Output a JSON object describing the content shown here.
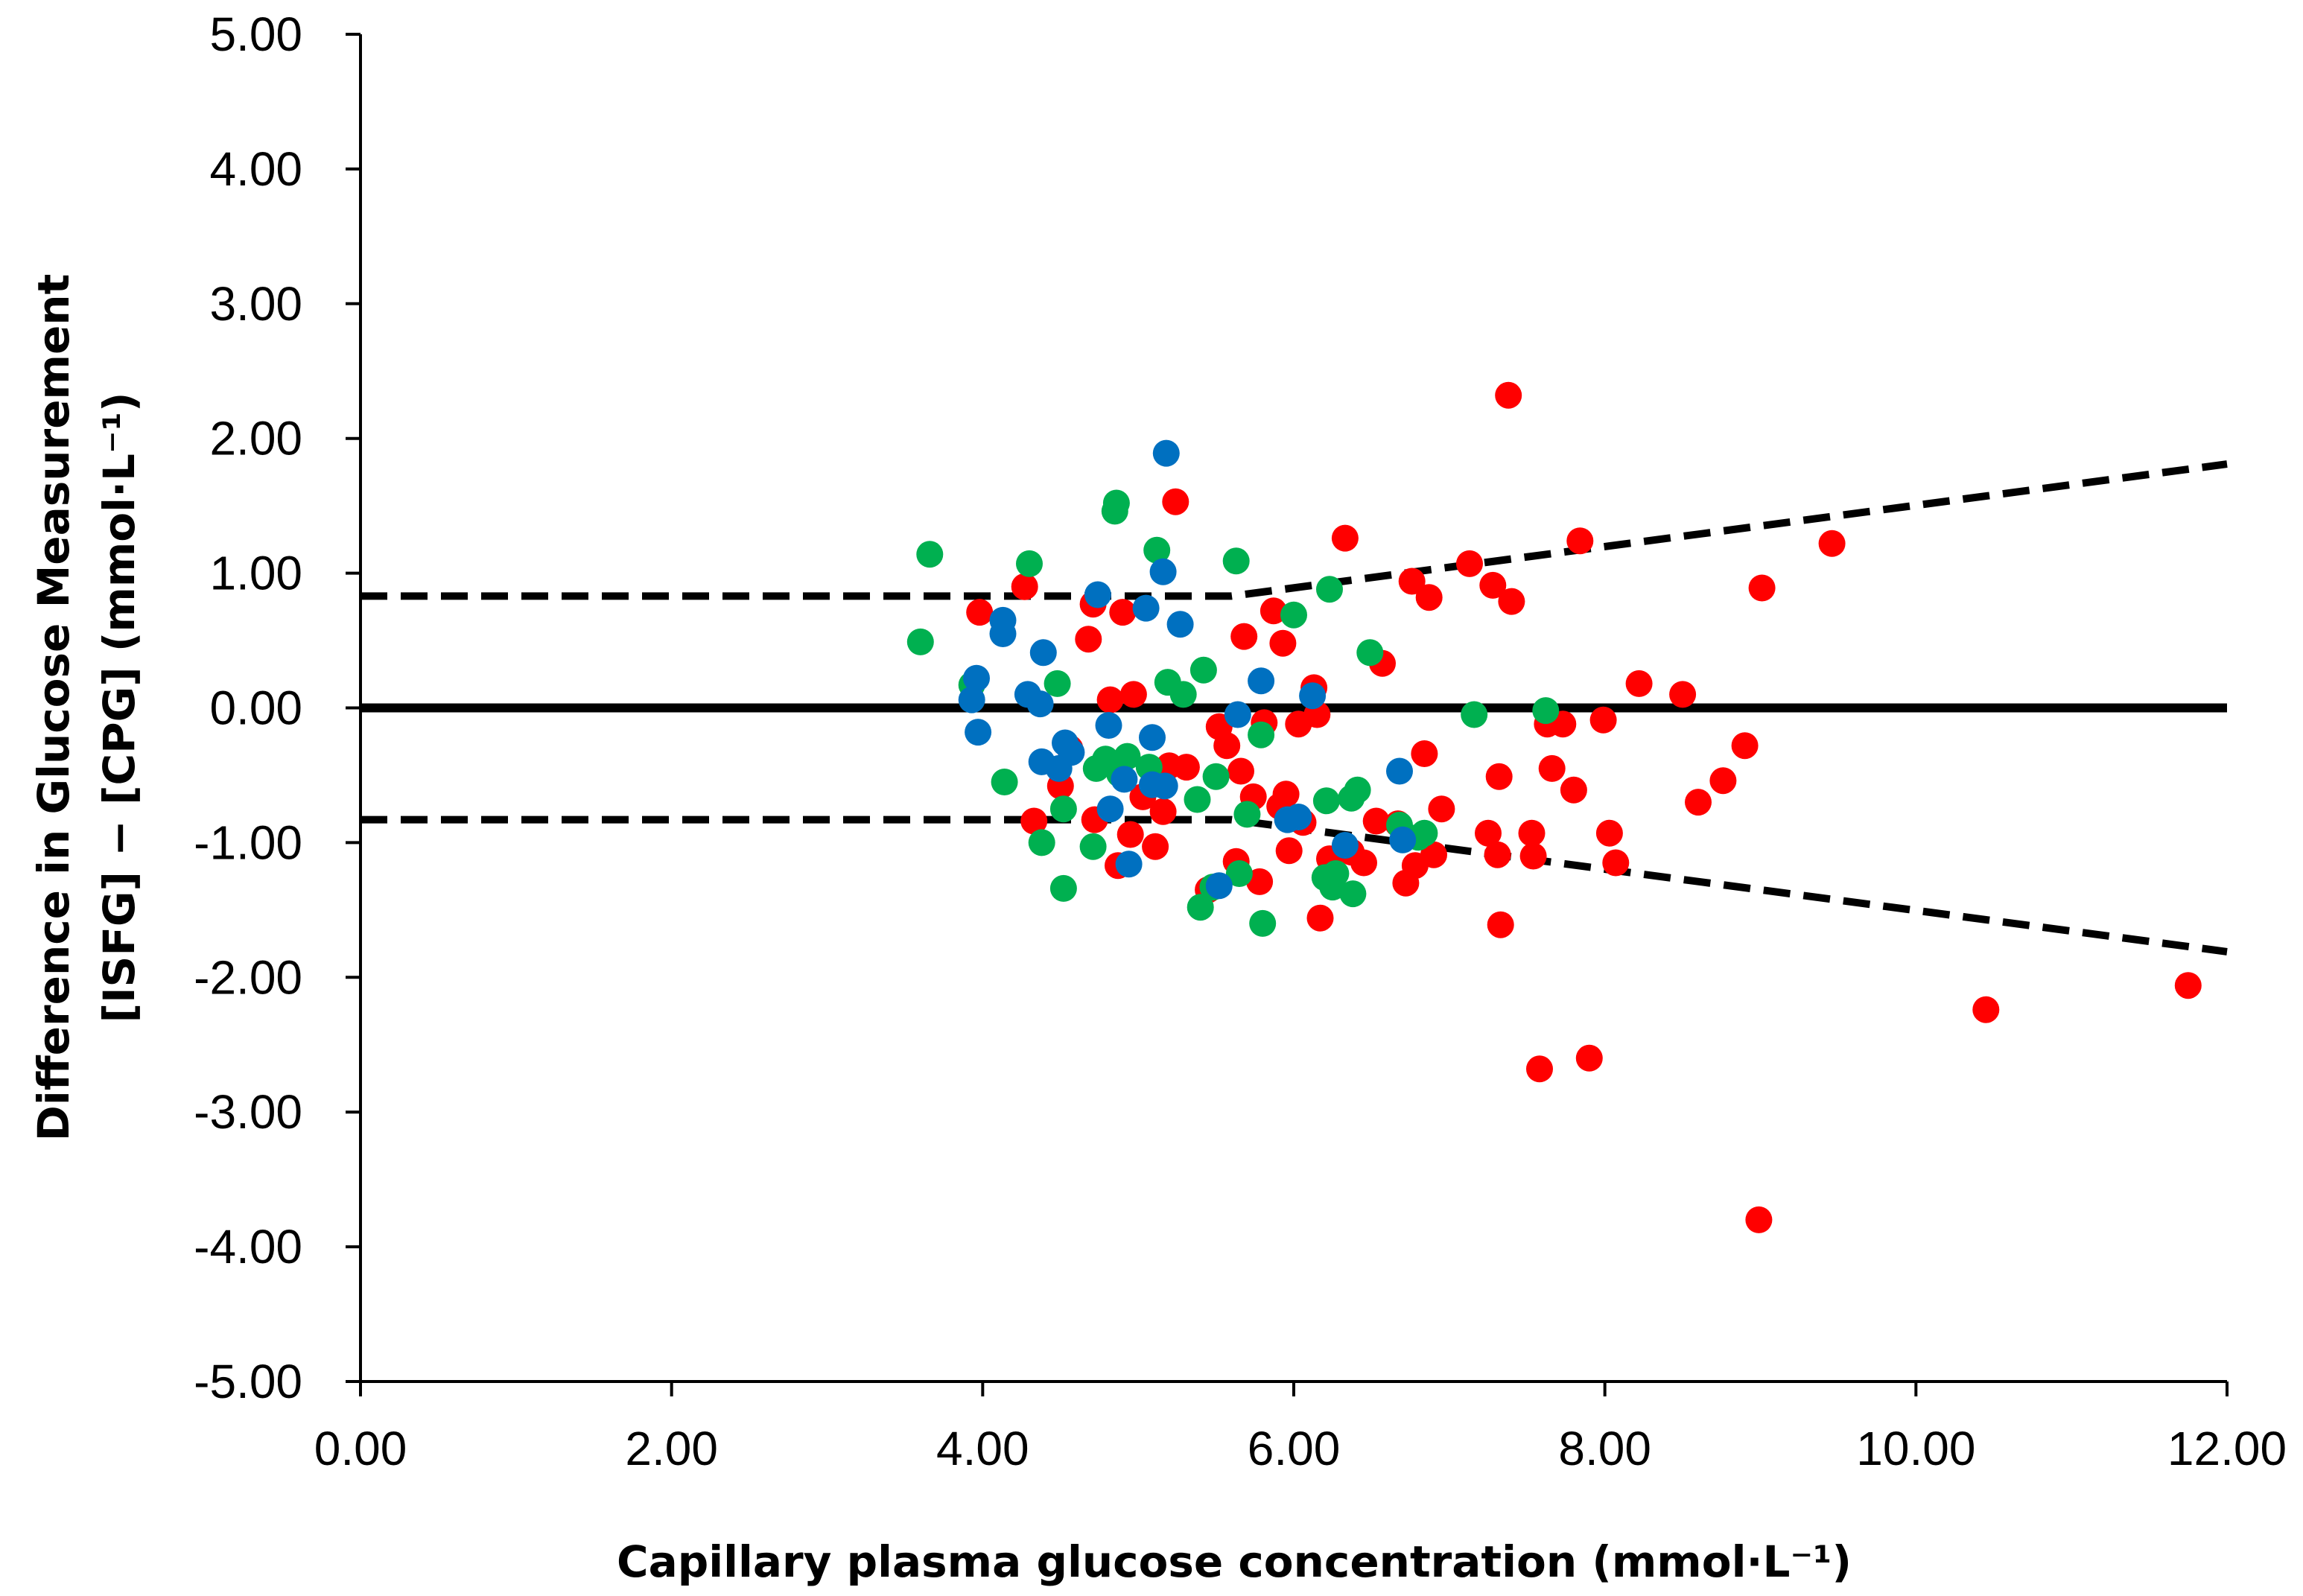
{
  "chart_data": {
    "type": "scatter",
    "title": "",
    "xlabel": "Capillary plasma glucose concentration (mmol·L⁻¹)",
    "ylabel_line1": "Difference in Glucose Measurement",
    "ylabel_line2": "[ISFG] − [CPG] (mmol·L⁻¹)",
    "xlim": [
      0,
      12
    ],
    "ylim": [
      -5,
      5
    ],
    "x_ticks": [
      0,
      2,
      4,
      6,
      8,
      10,
      12
    ],
    "y_ticks": [
      -5,
      -4,
      -3,
      -2,
      -1,
      0,
      1,
      2,
      3,
      4,
      5
    ],
    "x_tick_labels": [
      "0.00",
      "2.00",
      "4.00",
      "6.00",
      "8.00",
      "10.00",
      "12.00"
    ],
    "y_tick_labels": [
      "-5.00",
      "-4.00",
      "-3.00",
      "-2.00",
      "-1.00",
      "0.00",
      "1.00",
      "2.00",
      "3.00",
      "4.00",
      "5.00"
    ],
    "grid": false,
    "legend": "none",
    "colors": {
      "red": "#ff0000",
      "green": "#00b050",
      "blue": "#0070c0",
      "lines": "#000000"
    },
    "reference_lines": [
      {
        "name": "mean-difference",
        "style": "solid",
        "points": [
          [
            0,
            0.0
          ],
          [
            12,
            0.0
          ]
        ]
      },
      {
        "name": "upper-limit",
        "style": "dashed",
        "points": [
          [
            0,
            0.83
          ],
          [
            5.6,
            0.83
          ],
          [
            12,
            1.81
          ]
        ]
      },
      {
        "name": "lower-limit",
        "style": "dashed",
        "points": [
          [
            0,
            -0.83
          ],
          [
            5.6,
            -0.83
          ],
          [
            12,
            -1.81
          ]
        ]
      }
    ],
    "series": [
      {
        "name": "red",
        "color": "#ff0000",
        "points": [
          [
            3.98,
            0.71
          ],
          [
            4.27,
            0.9
          ],
          [
            4.33,
            -0.84
          ],
          [
            4.5,
            -0.58
          ],
          [
            4.56,
            -0.3
          ],
          [
            4.68,
            0.51
          ],
          [
            4.71,
            0.77
          ],
          [
            4.72,
            -0.83
          ],
          [
            4.82,
            0.06
          ],
          [
            4.87,
            -1.17
          ],
          [
            4.9,
            0.71
          ],
          [
            4.95,
            -0.94
          ],
          [
            4.97,
            0.1
          ],
          [
            5.03,
            -0.66
          ],
          [
            5.11,
            -1.03
          ],
          [
            5.16,
            -0.77
          ],
          [
            5.2,
            -0.43
          ],
          [
            5.24,
            1.53
          ],
          [
            5.31,
            -0.44
          ],
          [
            5.45,
            -1.35
          ],
          [
            5.52,
            -0.14
          ],
          [
            5.57,
            -0.28
          ],
          [
            5.63,
            -1.14
          ],
          [
            5.66,
            -0.47
          ],
          [
            5.68,
            0.53
          ],
          [
            5.74,
            -0.66
          ],
          [
            5.78,
            -1.29
          ],
          [
            5.81,
            -0.11
          ],
          [
            5.87,
            0.72
          ],
          [
            5.91,
            -0.73
          ],
          [
            5.93,
            0.48
          ],
          [
            5.95,
            -0.64
          ],
          [
            5.97,
            -1.06
          ],
          [
            6.03,
            -0.12
          ],
          [
            6.06,
            -0.85
          ],
          [
            6.13,
            0.15
          ],
          [
            6.15,
            -0.05
          ],
          [
            6.17,
            -1.56
          ],
          [
            6.23,
            -1.12
          ],
          [
            6.33,
            1.26
          ],
          [
            6.37,
            -1.07
          ],
          [
            6.45,
            -1.15
          ],
          [
            6.53,
            -0.84
          ],
          [
            6.57,
            0.33
          ],
          [
            6.67,
            -0.86
          ],
          [
            6.72,
            -1.3
          ],
          [
            6.76,
            0.94
          ],
          [
            6.78,
            -1.17
          ],
          [
            6.84,
            -0.34
          ],
          [
            6.87,
            0.82
          ],
          [
            6.9,
            -1.09
          ],
          [
            6.95,
            -0.75
          ],
          [
            7.13,
            1.07
          ],
          [
            7.25,
            -0.93
          ],
          [
            7.28,
            0.91
          ],
          [
            7.31,
            -1.09
          ],
          [
            7.32,
            -0.51
          ],
          [
            7.33,
            -1.61
          ],
          [
            7.38,
            2.32
          ],
          [
            7.4,
            0.79
          ],
          [
            7.53,
            -0.93
          ],
          [
            7.54,
            -1.1
          ],
          [
            7.58,
            -2.68
          ],
          [
            7.63,
            -0.12
          ],
          [
            7.66,
            -0.45
          ],
          [
            7.73,
            -0.12
          ],
          [
            7.8,
            -0.61
          ],
          [
            7.84,
            1.24
          ],
          [
            7.9,
            -2.6
          ],
          [
            7.99,
            -0.09
          ],
          [
            8.03,
            -0.93
          ],
          [
            8.07,
            -1.15
          ],
          [
            8.22,
            0.18
          ],
          [
            8.5,
            0.1
          ],
          [
            8.6,
            -0.7
          ],
          [
            8.76,
            -0.54
          ],
          [
            8.9,
            -0.28
          ],
          [
            8.99,
            -3.8
          ],
          [
            9.01,
            0.89
          ],
          [
            9.46,
            1.22
          ],
          [
            10.45,
            -2.24
          ],
          [
            11.75,
            -2.06
          ]
        ]
      },
      {
        "name": "green",
        "color": "#00b050",
        "points": [
          [
            3.6,
            0.49
          ],
          [
            3.66,
            1.14
          ],
          [
            3.93,
            0.17
          ],
          [
            4.14,
            -0.55
          ],
          [
            4.3,
            1.07
          ],
          [
            4.38,
            -1.0
          ],
          [
            4.48,
            0.18
          ],
          [
            4.52,
            -0.75
          ],
          [
            4.52,
            -1.34
          ],
          [
            4.71,
            -1.03
          ],
          [
            4.73,
            -0.45
          ],
          [
            4.79,
            -0.38
          ],
          [
            4.85,
            1.46
          ],
          [
            4.86,
            1.52
          ],
          [
            4.88,
            -0.49
          ],
          [
            4.93,
            -0.36
          ],
          [
            5.07,
            -0.44
          ],
          [
            5.12,
            1.17
          ],
          [
            5.19,
            0.19
          ],
          [
            5.29,
            0.1
          ],
          [
            5.38,
            -0.68
          ],
          [
            5.4,
            -1.48
          ],
          [
            5.42,
            0.28
          ],
          [
            5.48,
            -1.33
          ],
          [
            5.5,
            -0.51
          ],
          [
            5.63,
            1.09
          ],
          [
            5.65,
            -1.23
          ],
          [
            5.7,
            -0.79
          ],
          [
            5.79,
            -0.2
          ],
          [
            5.8,
            -1.6
          ],
          [
            6.0,
            0.69
          ],
          [
            6.2,
            -1.26
          ],
          [
            6.21,
            -0.69
          ],
          [
            6.23,
            0.88
          ],
          [
            6.25,
            -1.33
          ],
          [
            6.27,
            -1.23
          ],
          [
            6.37,
            -0.67
          ],
          [
            6.38,
            -1.38
          ],
          [
            6.41,
            -0.61
          ],
          [
            6.49,
            0.41
          ],
          [
            6.68,
            -0.87
          ],
          [
            6.8,
            -0.96
          ],
          [
            6.84,
            -0.93
          ],
          [
            7.16,
            -0.05
          ],
          [
            7.62,
            -0.02
          ]
        ]
      },
      {
        "name": "blue",
        "color": "#0070c0",
        "points": [
          [
            3.93,
            0.06
          ],
          [
            3.96,
            0.22
          ],
          [
            3.97,
            -0.18
          ],
          [
            4.13,
            0.65
          ],
          [
            4.13,
            0.55
          ],
          [
            4.29,
            0.1
          ],
          [
            4.37,
            0.03
          ],
          [
            4.38,
            -0.4
          ],
          [
            4.39,
            0.41
          ],
          [
            4.49,
            -0.45
          ],
          [
            4.53,
            -0.26
          ],
          [
            4.57,
            -0.33
          ],
          [
            4.74,
            0.84
          ],
          [
            4.81,
            -0.13
          ],
          [
            4.82,
            -0.75
          ],
          [
            4.91,
            -0.53
          ],
          [
            4.94,
            -1.16
          ],
          [
            5.05,
            0.74
          ],
          [
            5.09,
            -0.22
          ],
          [
            5.09,
            -0.57
          ],
          [
            5.16,
            1.01
          ],
          [
            5.17,
            -0.58
          ],
          [
            5.18,
            1.89
          ],
          [
            5.27,
            0.62
          ],
          [
            5.52,
            -1.32
          ],
          [
            5.64,
            -0.05
          ],
          [
            5.79,
            0.2
          ],
          [
            5.96,
            -0.83
          ],
          [
            6.03,
            -0.81
          ],
          [
            6.12,
            0.09
          ],
          [
            6.33,
            -1.02
          ],
          [
            6.68,
            -0.47
          ],
          [
            6.7,
            -0.98
          ]
        ]
      }
    ]
  }
}
